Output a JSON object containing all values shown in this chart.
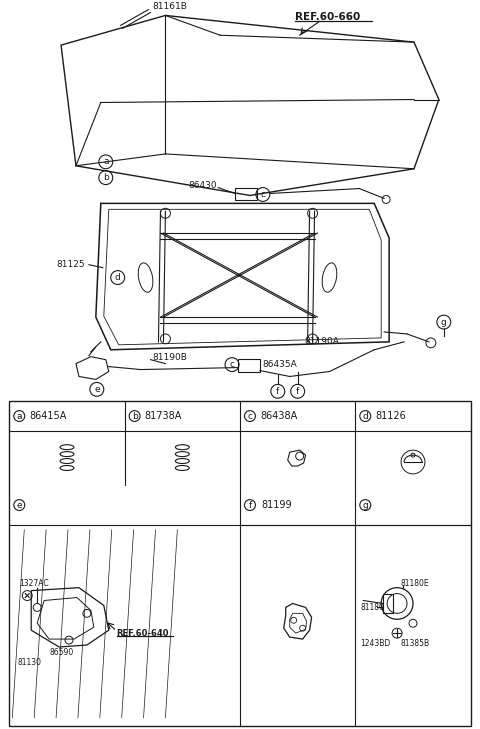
{
  "bg_color": "#ffffff",
  "line_color": "#1a1a1a",
  "fig_width": 4.8,
  "fig_height": 7.29,
  "dpi": 100,
  "labels": {
    "ref60660": "REF.60-660",
    "label_81161B": "81161B",
    "label_86430": "86430",
    "label_81125": "81125",
    "label_81190A": "81190A",
    "label_81190B": "81190B",
    "label_86435A": "86435A"
  },
  "table_row1": [
    {
      "letter": "a",
      "part": "86415A"
    },
    {
      "letter": "b",
      "part": "81738A"
    },
    {
      "letter": "c",
      "part": "86438A"
    },
    {
      "letter": "d",
      "part": "81126"
    }
  ],
  "table_row2": [
    {
      "letter": "e",
      "part": "",
      "label_e_parts": [
        "1327AC",
        "86590",
        "81130",
        "REF.60-640"
      ]
    },
    {
      "letter": "f",
      "part": "81199"
    },
    {
      "letter": "g",
      "part": "",
      "label_g_parts": [
        "81180",
        "81180E",
        "1243BD",
        "81385B"
      ]
    }
  ]
}
